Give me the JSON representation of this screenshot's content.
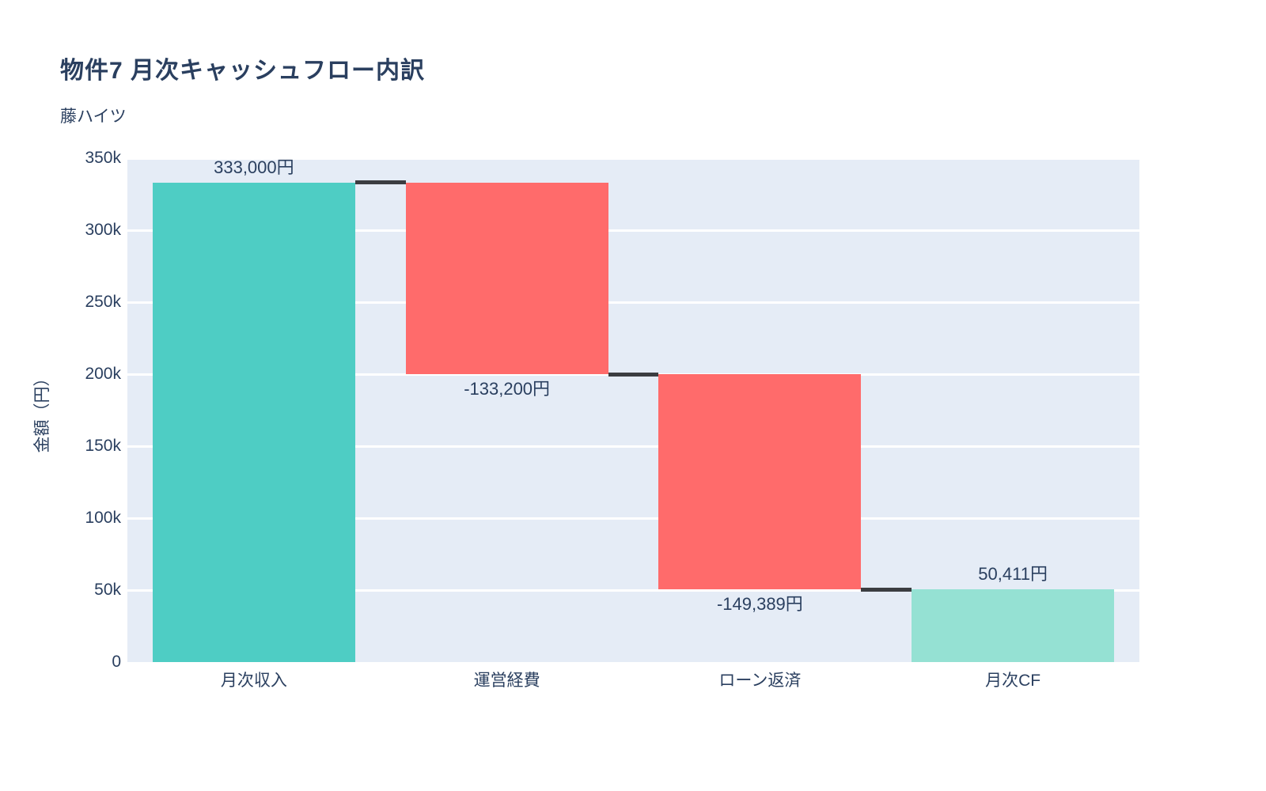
{
  "header": {
    "title": "物件7 月次キャッシュフロー内訳",
    "subtitle": "藤ハイツ"
  },
  "colors": {
    "text": "#2a3f5f",
    "plot_background": "#E5ECF6",
    "gridline": "#ffffff",
    "increasing": "#4ECDC4",
    "decreasing": "#FF6B6B",
    "total": "#95E1D3",
    "connector": "#3b3d41"
  },
  "chart_data": {
    "type": "bar",
    "subtype": "waterfall",
    "title": "物件7 月次キャッシュフロー内訳",
    "subtitle": "藤ハイツ",
    "categories": [
      "月次収入",
      "運営経費",
      "ローン返済",
      "月次CF"
    ],
    "values": [
      333000,
      -133200,
      -149389,
      50411
    ],
    "measures": [
      "relative",
      "relative",
      "relative",
      "total"
    ],
    "data_labels": [
      "333,000円",
      "-133,200円",
      "-149,389円",
      "50,411円"
    ],
    "label_positions": [
      "above",
      "below",
      "below",
      "above"
    ],
    "xlabel": "",
    "ylabel": "金額（円）",
    "ylim": [
      0,
      350000
    ],
    "ytick_step": 50000,
    "ytick_labels": [
      "0",
      "50k",
      "100k",
      "150k",
      "200k",
      "250k",
      "300k",
      "350k"
    ],
    "grid": "horizontal",
    "legend": "none"
  }
}
